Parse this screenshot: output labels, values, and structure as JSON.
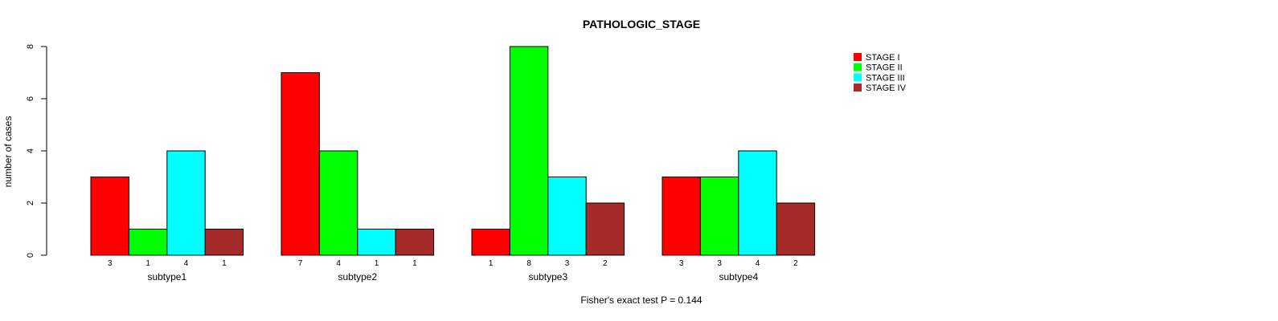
{
  "chart_data": {
    "type": "bar",
    "title": "PATHOLOGIC_STAGE",
    "xlabel": "",
    "ylabel": "number of cases",
    "ylim": [
      0,
      8
    ],
    "yticks": [
      0,
      2,
      4,
      6,
      8
    ],
    "categories": [
      "subtype1",
      "subtype2",
      "subtype3",
      "subtype4"
    ],
    "series": [
      {
        "name": "STAGE I",
        "color": "#ff0000",
        "values": [
          3,
          7,
          1,
          3
        ]
      },
      {
        "name": "STAGE II",
        "color": "#00ff00",
        "values": [
          1,
          4,
          8,
          3
        ]
      },
      {
        "name": "STAGE III",
        "color": "#00ffff",
        "values": [
          4,
          1,
          3,
          4
        ]
      },
      {
        "name": "STAGE IV",
        "color": "#a52a2a",
        "values": [
          1,
          1,
          2,
          2
        ]
      }
    ],
    "legend_position": "top-right",
    "grid": false,
    "footnote": "Fisher's exact test P = 0.144"
  }
}
